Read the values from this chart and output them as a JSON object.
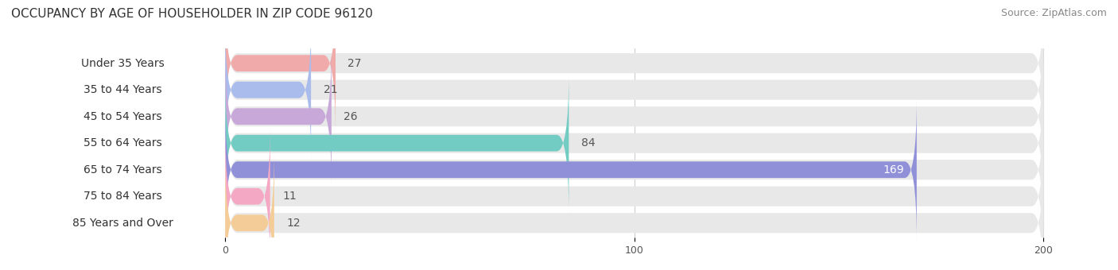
{
  "title": "OCCUPANCY BY AGE OF HOUSEHOLDER IN ZIP CODE 96120",
  "source": "Source: ZipAtlas.com",
  "categories": [
    "Under 35 Years",
    "35 to 44 Years",
    "45 to 54 Years",
    "55 to 64 Years",
    "65 to 74 Years",
    "75 to 84 Years",
    "85 Years and Over"
  ],
  "values": [
    27,
    21,
    26,
    84,
    169,
    11,
    12
  ],
  "bar_colors": [
    "#f0aaaa",
    "#aabcec",
    "#c8a8d8",
    "#72ccc4",
    "#9090d8",
    "#f4a8c4",
    "#f4cc98"
  ],
  "bar_bg_color": "#e8e8e8",
  "fig_bg_color": "#ffffff",
  "xlim_left": -55,
  "xlim_right": 210,
  "xticks": [
    0,
    100,
    200
  ],
  "title_fontsize": 11,
  "source_fontsize": 9,
  "label_fontsize": 10,
  "value_fontsize": 10,
  "figsize": [
    14.06,
    3.4
  ],
  "dpi": 100
}
